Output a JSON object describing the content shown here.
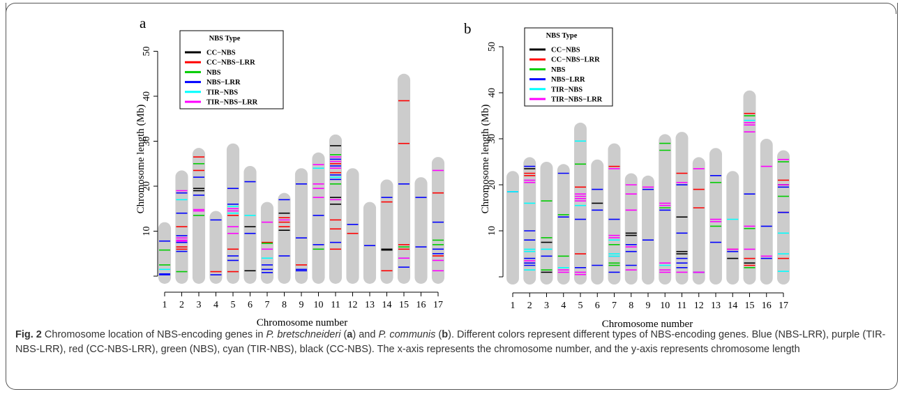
{
  "caption": {
    "label": "Fig. 2",
    "text_1": "Chromosome location of NBS-encoding genes in ",
    "species_a": "P. bretschneideri",
    "text_2": " (",
    "panel_a": "a",
    "text_3": ") and ",
    "species_b": "P. communis",
    "text_4": " (",
    "panel_b": "b",
    "text_5": "). Different colors represent different types of NBS-encoding genes. Blue (NBS-LRR), purple (TIR-NBS-LRR), red (CC-NBS-LRR), green (NBS), cyan (TIR-NBS), black (CC-NBS). The x-axis represents the chromosome number, and the y-axis represents chromosome length"
  },
  "colors": {
    "chromosome": "#cccccc",
    "CC-NBS": "#000000",
    "CC-NBS-LRR": "#ff0000",
    "NBS": "#00cc00",
    "NBS-LRR": "#0000ff",
    "TIR-NBS": "#00ffff",
    "TIR-NBS-LRR": "#ff00ff"
  },
  "chart_data": [
    {
      "panel": "a",
      "type": "scatter",
      "title": "",
      "xlabel": "Chromosome number",
      "ylabel": "Chromosome length (Mb)",
      "xticks": [
        "1",
        "2",
        "3",
        "4",
        "5",
        "6",
        "7",
        "8",
        "9",
        "10",
        "11",
        "12",
        "13",
        "14",
        "15",
        "16",
        "17"
      ],
      "yticks": [
        10,
        20,
        30,
        40,
        50
      ],
      "ylim": [
        0,
        55
      ],
      "legend": {
        "title": "NBS Type",
        "placement": "top-left",
        "entries": [
          "CC−NBS",
          "CC−NBS−LRR",
          "NBS",
          "NBS−LRR",
          "TIR−NBS",
          "TIR−NBS−LRR"
        ]
      },
      "chromosome_lengths": [
        12,
        23.5,
        28.5,
        14.5,
        29.5,
        24.5,
        16.5,
        18.5,
        24,
        27.5,
        31.5,
        24,
        16.5,
        21.5,
        45,
        22,
        26.5
      ],
      "genes": {
        "CC-NBS": [
          [
            3,
            19.5
          ],
          [
            3,
            19
          ],
          [
            6,
            11
          ],
          [
            6,
            1.2
          ],
          [
            8,
            14
          ],
          [
            8,
            10.2
          ],
          [
            11,
            29
          ],
          [
            11,
            16
          ],
          [
            11,
            17.5
          ],
          [
            14,
            6
          ],
          [
            14,
            5.8
          ]
        ],
        "CC-NBS-LRR": [
          [
            2,
            6.5
          ],
          [
            2,
            6
          ],
          [
            2,
            11
          ],
          [
            3,
            23.5
          ],
          [
            3,
            26.5
          ],
          [
            4,
            1
          ],
          [
            5,
            6
          ],
          [
            5,
            1
          ],
          [
            5,
            13.5
          ],
          [
            7,
            7.5
          ],
          [
            8,
            13
          ],
          [
            8,
            11
          ],
          [
            8,
            12
          ],
          [
            9,
            2.5
          ],
          [
            11,
            25
          ],
          [
            11,
            23
          ],
          [
            11,
            12.5
          ],
          [
            11,
            10.5
          ],
          [
            11,
            6
          ],
          [
            12,
            9.5
          ],
          [
            14,
            16.5
          ],
          [
            14,
            1.2
          ],
          [
            15,
            39
          ],
          [
            15,
            29.5
          ],
          [
            15,
            7
          ],
          [
            15,
            6
          ],
          [
            17,
            18.5
          ],
          [
            17,
            4.5
          ]
        ],
        "NBS": [
          [
            1,
            5.8
          ],
          [
            1,
            2.5
          ],
          [
            2,
            1
          ],
          [
            3,
            13.5
          ],
          [
            3,
            25
          ],
          [
            7,
            7.3
          ],
          [
            10,
            6
          ],
          [
            11,
            20.5
          ],
          [
            11,
            27
          ],
          [
            15,
            6.5
          ],
          [
            17,
            8
          ],
          [
            17,
            7
          ]
        ],
        "NBS-LRR": [
          [
            1,
            7.8
          ],
          [
            1,
            0.5
          ],
          [
            1,
            0.3
          ],
          [
            2,
            14
          ],
          [
            2,
            18.5
          ],
          [
            2,
            9
          ],
          [
            2,
            5.5
          ],
          [
            2,
            7.5
          ],
          [
            3,
            22
          ],
          [
            3,
            18
          ],
          [
            4,
            12.5
          ],
          [
            4,
            0.3
          ],
          [
            5,
            19.5
          ],
          [
            5,
            16
          ],
          [
            5,
            3.5
          ],
          [
            5,
            4.5
          ],
          [
            6,
            21
          ],
          [
            6,
            9.5
          ],
          [
            7,
            2.5
          ],
          [
            7,
            1.5
          ],
          [
            7,
            0.8
          ],
          [
            8,
            17
          ],
          [
            8,
            4.5
          ],
          [
            9,
            20.5
          ],
          [
            9,
            8.5
          ],
          [
            9,
            1.5
          ],
          [
            9,
            1.2
          ],
          [
            10,
            13.5
          ],
          [
            10,
            7
          ],
          [
            11,
            26
          ],
          [
            11,
            24.5
          ],
          [
            11,
            22.5
          ],
          [
            11,
            21.5
          ],
          [
            11,
            7.5
          ],
          [
            12,
            11.5
          ],
          [
            13,
            6.8
          ],
          [
            14,
            17.5
          ],
          [
            15,
            20.5
          ],
          [
            15,
            2
          ],
          [
            16,
            17.5
          ],
          [
            16,
            6.5
          ],
          [
            17,
            12
          ],
          [
            17,
            6
          ],
          [
            17,
            5
          ]
        ],
        "TIR-NBS": [
          [
            1,
            1.5
          ],
          [
            2,
            17
          ],
          [
            5,
            15.5
          ],
          [
            5,
            14
          ],
          [
            6,
            13.5
          ],
          [
            7,
            4
          ],
          [
            10,
            24
          ],
          [
            11,
            22
          ],
          [
            15,
            4
          ]
        ],
        "TIR-NBS-LRR": [
          [
            2,
            19
          ],
          [
            2,
            8
          ],
          [
            2,
            7.8
          ],
          [
            2,
            8.5
          ],
          [
            3,
            14.8
          ],
          [
            3,
            14.5
          ],
          [
            5,
            15
          ],
          [
            5,
            14.5
          ],
          [
            5,
            11
          ],
          [
            5,
            9.5
          ],
          [
            7,
            12
          ],
          [
            7,
            6
          ],
          [
            8,
            12.5
          ],
          [
            10,
            24.8
          ],
          [
            10,
            20.5
          ],
          [
            10,
            19.5
          ],
          [
            10,
            17.5
          ],
          [
            11,
            26.5
          ],
          [
            11,
            25.5
          ],
          [
            11,
            24
          ],
          [
            11,
            17
          ],
          [
            15,
            4
          ],
          [
            17,
            23.5
          ],
          [
            17,
            3.5
          ],
          [
            17,
            1.2
          ]
        ]
      }
    },
    {
      "panel": "b",
      "type": "scatter",
      "title": "",
      "xlabel": "Chromosome number",
      "ylabel": "Chromosome length (Mb)",
      "xticks": [
        "1",
        "2",
        "3",
        "4",
        "5",
        "6",
        "7",
        "8",
        "9",
        "10",
        "11",
        "12",
        "13",
        "14",
        "15",
        "16",
        "17"
      ],
      "yticks": [
        10,
        20,
        30,
        40,
        50
      ],
      "ylim": [
        0,
        55
      ],
      "legend": {
        "title": "NBS Type",
        "placement": "top-left",
        "entries": [
          "CC−NBS",
          "CC−NBS−LRR",
          "NBS",
          "NBS−LRR",
          "TIR−NBS",
          "TIR−NBS−LRR"
        ]
      },
      "chromosome_lengths": [
        23,
        26,
        25,
        24.5,
        33.5,
        25.5,
        29,
        22.5,
        22,
        31,
        31.5,
        26,
        28,
        23,
        40.5,
        30,
        27.5
      ],
      "genes": {
        "CC-NBS": [
          [
            2,
            23.5
          ],
          [
            3,
            7.5
          ],
          [
            3,
            1
          ],
          [
            6,
            16
          ],
          [
            8,
            9.5
          ],
          [
            8,
            9
          ],
          [
            11,
            13
          ],
          [
            11,
            5.5
          ],
          [
            11,
            5
          ],
          [
            14,
            4
          ],
          [
            15,
            3
          ],
          [
            17,
            20
          ]
        ],
        "CC-NBS-LRR": [
          [
            2,
            22.5
          ],
          [
            2,
            22
          ],
          [
            5,
            19.5
          ],
          [
            5,
            5
          ],
          [
            7,
            24
          ],
          [
            11,
            22.5
          ],
          [
            12,
            19
          ],
          [
            12,
            15
          ],
          [
            14,
            6
          ],
          [
            15,
            35.5
          ],
          [
            15,
            4
          ],
          [
            15,
            2.5
          ],
          [
            17,
            21
          ],
          [
            17,
            14
          ],
          [
            17,
            4
          ]
        ],
        "NBS": [
          [
            3,
            16.5
          ],
          [
            3,
            8.5
          ],
          [
            3,
            1.5
          ],
          [
            4,
            13.5
          ],
          [
            4,
            4.5
          ],
          [
            5,
            24.5
          ],
          [
            7,
            7
          ],
          [
            7,
            2.5
          ],
          [
            7,
            3
          ],
          [
            10,
            29
          ],
          [
            10,
            27.5
          ],
          [
            10,
            15
          ],
          [
            13,
            20.5
          ],
          [
            13,
            11
          ],
          [
            15,
            35
          ],
          [
            15,
            10.5
          ],
          [
            15,
            2
          ],
          [
            17,
            25
          ],
          [
            17,
            17.5
          ]
        ],
        "NBS-LRR": [
          [
            1,
            18.5
          ],
          [
            2,
            24
          ],
          [
            2,
            10
          ],
          [
            2,
            8
          ],
          [
            2,
            3
          ],
          [
            2,
            4
          ],
          [
            2,
            2.5
          ],
          [
            3,
            4.5
          ],
          [
            4,
            22.5
          ],
          [
            4,
            13
          ],
          [
            5,
            2
          ],
          [
            5,
            12.5
          ],
          [
            6,
            19
          ],
          [
            6,
            14.5
          ],
          [
            6,
            2.5
          ],
          [
            7,
            12.5
          ],
          [
            7,
            4.5
          ],
          [
            7,
            1
          ],
          [
            8,
            7
          ],
          [
            8,
            5.5
          ],
          [
            8,
            2.5
          ],
          [
            9,
            19
          ],
          [
            9,
            8
          ],
          [
            10,
            14.5
          ],
          [
            11,
            20
          ],
          [
            11,
            9.5
          ],
          [
            11,
            4
          ],
          [
            11,
            3
          ],
          [
            11,
            2
          ],
          [
            12,
            1
          ],
          [
            13,
            22
          ],
          [
            13,
            7.5
          ],
          [
            14,
            5.5
          ],
          [
            15,
            18
          ],
          [
            16,
            11
          ],
          [
            16,
            4
          ],
          [
            17,
            19.5
          ],
          [
            17,
            14
          ]
        ],
        "TIR-NBS": [
          [
            1,
            18.5
          ],
          [
            2,
            16
          ],
          [
            2,
            6
          ],
          [
            2,
            5.5
          ],
          [
            2,
            1.5
          ],
          [
            3,
            6
          ],
          [
            4,
            2
          ],
          [
            5,
            29.5
          ],
          [
            5,
            15.5
          ],
          [
            7,
            8
          ],
          [
            7,
            5
          ],
          [
            7,
            4.5
          ],
          [
            10,
            2.5
          ],
          [
            14,
            12.5
          ],
          [
            15,
            34
          ],
          [
            17,
            9.5
          ],
          [
            17,
            5
          ],
          [
            17,
            1.2
          ]
        ],
        "TIR-NBS-LRR": [
          [
            2,
            21
          ],
          [
            2,
            20.5
          ],
          [
            2,
            3.5
          ],
          [
            4,
            1.5
          ],
          [
            4,
            1
          ],
          [
            5,
            18
          ],
          [
            5,
            17.5
          ],
          [
            5,
            17
          ],
          [
            5,
            16.5
          ],
          [
            5,
            1
          ],
          [
            5,
            0.5
          ],
          [
            7,
            23.5
          ],
          [
            7,
            9
          ],
          [
            7,
            8.5
          ],
          [
            8,
            20
          ],
          [
            8,
            18
          ],
          [
            8,
            14.5
          ],
          [
            8,
            6.5
          ],
          [
            8,
            1.5
          ],
          [
            9,
            19.5
          ],
          [
            10,
            16
          ],
          [
            10,
            15.5
          ],
          [
            10,
            3
          ],
          [
            10,
            1.5
          ],
          [
            10,
            1
          ],
          [
            11,
            20.5
          ],
          [
            11,
            1
          ],
          [
            12,
            23.5
          ],
          [
            12,
            1
          ],
          [
            13,
            12.5
          ],
          [
            13,
            12
          ],
          [
            14,
            6
          ],
          [
            15,
            33.5
          ],
          [
            15,
            33
          ],
          [
            15,
            31.5
          ],
          [
            15,
            11
          ],
          [
            15,
            6
          ],
          [
            16,
            24
          ],
          [
            16,
            4.5
          ],
          [
            17,
            25.5
          ],
          [
            17,
            20
          ]
        ]
      }
    }
  ]
}
